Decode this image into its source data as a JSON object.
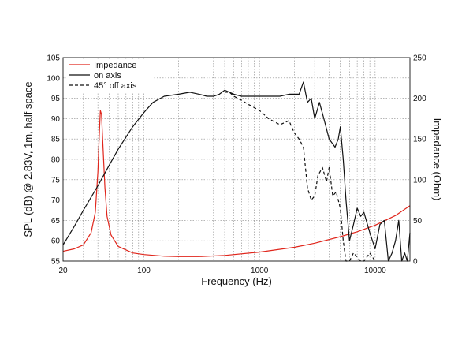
{
  "chart_data": {
    "type": "line",
    "xlabel": "Frequency (Hz)",
    "ylabel": "SPL (dB) @ 2.83V, 1m, half space",
    "y2label": "Impedance (Ohm)",
    "x_scale": "log",
    "xlim": [
      20,
      20000
    ],
    "ylim": [
      55,
      105
    ],
    "y2lim": [
      0,
      250
    ],
    "grid": true,
    "legend_position": "top-left",
    "x_tick_labels": [
      "20",
      "100",
      "1000",
      "10000"
    ],
    "y_ticks": [
      55,
      60,
      65,
      70,
      75,
      80,
      85,
      90,
      95,
      100,
      105
    ],
    "y2_ticks": [
      0,
      50,
      100,
      150,
      200,
      250
    ],
    "series": [
      {
        "name": "Impedance",
        "axis": "right",
        "color": "#e0261c",
        "dash": "solid",
        "x": [
          20,
          25,
          30,
          35,
          38,
          40,
          41,
          42,
          43,
          44,
          46,
          48,
          52,
          60,
          80,
          100,
          150,
          200,
          300,
          500,
          1000,
          2000,
          3000,
          5000,
          7000,
          10000,
          15000,
          20000
        ],
        "y": [
          12,
          15,
          20,
          35,
          60,
          110,
          150,
          185,
          180,
          150,
          90,
          55,
          32,
          18,
          10,
          8,
          6,
          5.5,
          5.5,
          7,
          11,
          17,
          22,
          30,
          36,
          44,
          56,
          68
        ]
      },
      {
        "name": "on axis",
        "axis": "left",
        "color": "#111111",
        "dash": "solid",
        "x": [
          20,
          25,
          30,
          40,
          50,
          60,
          80,
          100,
          120,
          150,
          200,
          250,
          300,
          350,
          400,
          450,
          500,
          550,
          600,
          700,
          800,
          1000,
          1200,
          1500,
          1800,
          2000,
          2200,
          2400,
          2600,
          2800,
          3000,
          3300,
          3600,
          4000,
          4500,
          4800,
          5000,
          5300,
          5600,
          6000,
          6500,
          7000,
          7500,
          8000,
          9000,
          10000,
          11000,
          12000,
          13000,
          14000,
          15000,
          16000,
          17000,
          18000,
          19000,
          20000
        ],
        "y": [
          59,
          63.5,
          67.5,
          73.5,
          78.5,
          82.5,
          88,
          91.5,
          94,
          95.5,
          96,
          96.5,
          96,
          95.5,
          95.5,
          96,
          97,
          96.5,
          96,
          95.5,
          95.5,
          95.5,
          95.5,
          95.5,
          96,
          96,
          96,
          99,
          94,
          95,
          90,
          94,
          90,
          85,
          83,
          85,
          88,
          80,
          70,
          60,
          64,
          68,
          66,
          67,
          62,
          58,
          64,
          65,
          55,
          57,
          60,
          65,
          55,
          57,
          55,
          62
        ]
      },
      {
        "name": "45° off axis",
        "axis": "left",
        "color": "#111111",
        "dash": "4,3",
        "x": [
          500,
          550,
          600,
          700,
          800,
          1000,
          1200,
          1500,
          1800,
          2000,
          2200,
          2400,
          2600,
          2800,
          3000,
          3200,
          3500,
          3800,
          4000,
          4300,
          4600,
          5000,
          5300,
          5600,
          6000,
          6500,
          7000,
          7500,
          8000,
          9000,
          10000
        ],
        "y": [
          96.5,
          96.5,
          95.5,
          94.5,
          93.5,
          92,
          90,
          88.5,
          89.5,
          86.5,
          85,
          83,
          73,
          70,
          71,
          76,
          78,
          74.5,
          78,
          71,
          72,
          68,
          60,
          55,
          54,
          57,
          56,
          54,
          55,
          57,
          55
        ]
      }
    ]
  }
}
